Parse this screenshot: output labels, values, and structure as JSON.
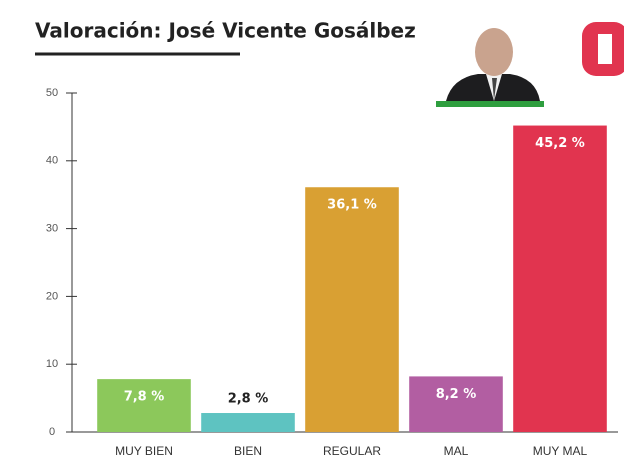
{
  "chart_data": {
    "type": "bar",
    "title": "Valoración: José Vicente Gosálbez",
    "categories": [
      "MUY BIEN",
      "BIEN",
      "REGULAR",
      "MAL",
      "MUY MAL"
    ],
    "values": [
      7.8,
      2.8,
      36.1,
      8.2,
      45.2
    ],
    "value_labels": [
      "7,8 %",
      "2,8 %",
      "36,1 %",
      "8,2 %",
      "45,2 %"
    ],
    "colors": [
      "#8cc85b",
      "#5ec3c1",
      "#d9a033",
      "#b25ea2",
      "#e1344f"
    ],
    "ylim": [
      0,
      50
    ],
    "yticks": [
      0,
      10,
      20,
      30,
      40,
      50
    ],
    "grid": false
  }
}
